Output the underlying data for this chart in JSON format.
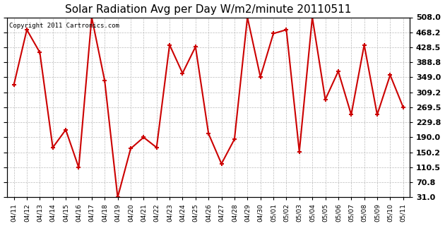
{
  "title": "Solar Radiation Avg per Day W/m2/minute 20110511",
  "copyright": "Copyright 2011 Cartronics.com",
  "x_labels": [
    "04/11",
    "04/12",
    "04/13",
    "04/14",
    "04/15",
    "04/16",
    "04/17",
    "04/18",
    "04/19",
    "04/20",
    "04/21",
    "04/22",
    "04/23",
    "04/24",
    "04/25",
    "04/26",
    "04/27",
    "04/28",
    "04/29",
    "04/30",
    "05/01",
    "05/02",
    "05/03",
    "05/04",
    "05/05",
    "05/06",
    "05/07",
    "05/08",
    "05/09",
    "05/10",
    "05/11"
  ],
  "y_values": [
    329,
    475,
    415,
    163,
    210,
    110,
    508,
    340,
    31,
    160,
    190,
    163,
    435,
    360,
    430,
    200,
    120,
    185,
    508,
    350,
    465,
    475,
    152,
    508,
    290,
    365,
    250,
    435,
    250,
    355,
    270
  ],
  "line_color": "#cc0000",
  "marker_color": "#cc0000",
  "bg_color": "#ffffff",
  "grid_color": "#b0b0b0",
  "yticks": [
    31.0,
    70.8,
    110.5,
    150.2,
    190.0,
    229.8,
    269.5,
    309.2,
    349.0,
    388.8,
    428.5,
    468.2,
    508.0
  ],
  "ylim": [
    31.0,
    508.0
  ],
  "title_fontsize": 12
}
